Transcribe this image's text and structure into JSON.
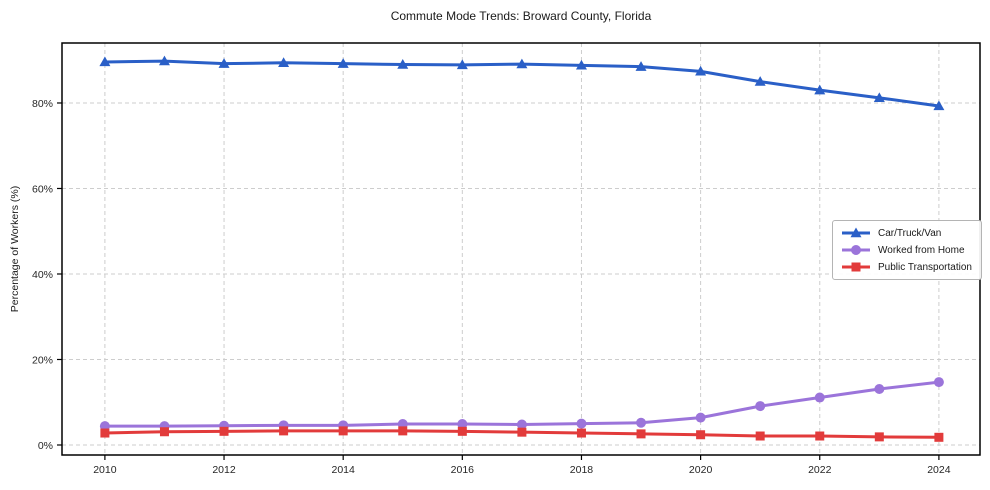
{
  "chart_data": {
    "type": "line",
    "title": "Commute Mode Trends: Broward County, Florida",
    "xlabel": "",
    "ylabel": "Percentage of Workers (%)",
    "x": [
      2010,
      2011,
      2012,
      2013,
      2014,
      2015,
      2016,
      2017,
      2018,
      2019,
      2020,
      2021,
      2022,
      2023,
      2024
    ],
    "series": [
      {
        "name": "Car/Truck/Van",
        "color": "#2a5fc7",
        "marker": "triangle",
        "values": [
          89.6,
          89.8,
          89.2,
          89.4,
          89.2,
          89.0,
          88.9,
          89.1,
          88.8,
          88.5,
          87.4,
          85.0,
          83.0,
          81.2,
          79.3
        ]
      },
      {
        "name": "Worked from Home",
        "color": "#9b74da",
        "marker": "circle",
        "values": [
          4.4,
          4.4,
          4.5,
          4.6,
          4.6,
          4.9,
          4.9,
          4.8,
          5.0,
          5.2,
          6.4,
          9.1,
          11.1,
          13.1,
          14.7
        ]
      },
      {
        "name": "Public Transportation",
        "color": "#e23b3b",
        "marker": "square",
        "values": [
          2.8,
          3.1,
          3.2,
          3.3,
          3.3,
          3.3,
          3.2,
          3.0,
          2.8,
          2.6,
          2.4,
          2.1,
          2.1,
          1.9,
          1.8
        ]
      }
    ],
    "x_ticks": [
      "2010",
      "2012",
      "2014",
      "2016",
      "2018",
      "2020",
      "2022",
      "2024"
    ],
    "x_tick_values": [
      2010,
      2012,
      2014,
      2016,
      2018,
      2020,
      2022,
      2024
    ],
    "y_ticks": [
      "0%",
      "20%",
      "40%",
      "60%",
      "80%"
    ],
    "y_tick_values": [
      0,
      20,
      40,
      60,
      80
    ],
    "xlim": [
      2009.28,
      2024.69
    ],
    "ylim": [
      -2.34,
      94.03
    ],
    "grid": true,
    "legend_position": "right-middle"
  },
  "colors": {
    "background": "#ffffff",
    "grid": "#cdcdcd",
    "axis": "#000000",
    "tick_label": "#262626",
    "legend_border": "#b4b4b4"
  }
}
